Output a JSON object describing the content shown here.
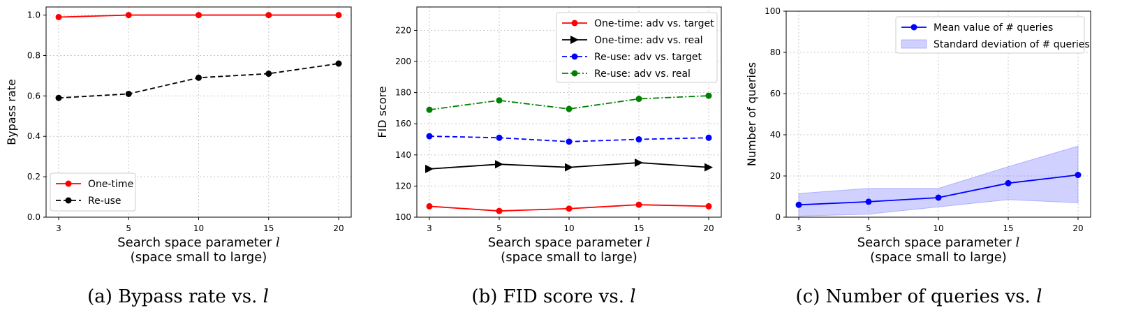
{
  "chart_data": [
    {
      "type": "line",
      "x": [
        "3",
        "5",
        "10",
        "15",
        "20"
      ],
      "ylabel": "Bypass rate",
      "xlabel": "Search space parameter l",
      "xlabel_sub": "(space small to large)",
      "caption": "(a) Bypass rate vs. l",
      "ylim": [
        0,
        1.04
      ],
      "yticks": [
        "0.0",
        "0.2",
        "0.4",
        "0.6",
        "0.8",
        "1.0"
      ],
      "ytick_values": [
        0,
        0.2,
        0.4,
        0.6,
        0.8,
        1.0
      ],
      "grid": true,
      "legend_position": "lower-left",
      "series": [
        {
          "name": "One-time",
          "values": [
            0.99,
            1.0,
            1.0,
            1.0,
            1.0
          ],
          "color": "#ff0000",
          "dash": "solid",
          "marker": "circle"
        },
        {
          "name": "Re-use",
          "values": [
            0.59,
            0.61,
            0.69,
            0.71,
            0.76
          ],
          "color": "#000000",
          "dash": "dashed",
          "marker": "circle"
        }
      ]
    },
    {
      "type": "line",
      "x": [
        "3",
        "5",
        "10",
        "15",
        "20"
      ],
      "ylabel": "FID score",
      "xlabel": "Search space parameter l",
      "xlabel_sub": "(space small to large)",
      "caption": "(b) FID score vs. l",
      "ylim": [
        100,
        235
      ],
      "yticks": [
        "100",
        "120",
        "140",
        "160",
        "180",
        "200",
        "220"
      ],
      "ytick_values": [
        100,
        120,
        140,
        160,
        180,
        200,
        220
      ],
      "grid": true,
      "legend_position": "upper-right",
      "series": [
        {
          "name": "One-time:  adv vs. target",
          "values": [
            107,
            104,
            105.5,
            108,
            107
          ],
          "color": "#ff0000",
          "dash": "solid",
          "marker": "circle"
        },
        {
          "name": "One-time:  adv vs. real",
          "values": [
            131,
            134,
            132,
            135,
            132
          ],
          "color": "#000000",
          "dash": "solid",
          "marker": "triangle-right"
        },
        {
          "name": "Re-use:  adv vs. target",
          "values": [
            152,
            151,
            148.5,
            150,
            151
          ],
          "color": "#0000ff",
          "dash": "dashed",
          "marker": "circle"
        },
        {
          "name": "Re-use:  adv vs. real",
          "values": [
            169,
            175,
            169.5,
            176,
            178
          ],
          "color": "#008000",
          "dash": "dashdot",
          "marker": "circle"
        }
      ]
    },
    {
      "type": "line",
      "x": [
        "3",
        "5",
        "10",
        "15",
        "20"
      ],
      "ylabel": "Number of queries",
      "xlabel": "Search space parameter l",
      "xlabel_sub": "(space small to large)",
      "caption": "(c) Number of queries vs. l",
      "ylim": [
        0,
        100
      ],
      "yticks": [
        "0",
        "20",
        "40",
        "60",
        "80",
        "100"
      ],
      "ytick_values": [
        0,
        20,
        40,
        60,
        80,
        100
      ],
      "grid": true,
      "legend_position": "upper-right",
      "series": [
        {
          "name": "Mean value of # queries",
          "values": [
            6,
            7.5,
            9.5,
            16.5,
            20.5
          ],
          "color": "#0000ff",
          "dash": "solid",
          "marker": "circle"
        }
      ],
      "band": {
        "name": "Standard deviation of # queries",
        "lower": [
          0.5,
          1.5,
          5,
          8.5,
          7
        ],
        "upper": [
          11.5,
          14,
          14,
          24.5,
          34.5
        ],
        "color": "#7b7bff"
      }
    }
  ]
}
